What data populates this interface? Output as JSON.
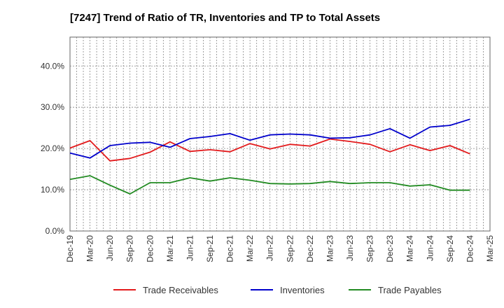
{
  "chart_data": {
    "type": "line",
    "title": "[7247]  Trend of Ratio of TR, Inventories and TP to Total Assets",
    "xlabel": "",
    "ylabel": "",
    "ylim": [
      0,
      47
    ],
    "y_ticks": [
      "0.0%",
      "10.0%",
      "20.0%",
      "30.0%",
      "40.0%"
    ],
    "y_tick_values": [
      0,
      10,
      20,
      30,
      40
    ],
    "x_tick_labels": [
      "Dec-19",
      "Mar-20",
      "Jun-20",
      "Sep-20",
      "Dec-20",
      "Mar-21",
      "Jun-21",
      "Sep-21",
      "Dec-21",
      "Mar-22",
      "Jun-22",
      "Sep-22",
      "Dec-22",
      "Mar-23",
      "Jun-23",
      "Sep-23",
      "Dec-23",
      "Mar-24",
      "Jun-24",
      "Sep-24",
      "Dec-24",
      "Mar-25"
    ],
    "x": [
      "Dec-19",
      "Mar-20",
      "Jun-20",
      "Sep-20",
      "Dec-20",
      "Mar-21",
      "Jun-21",
      "Sep-21",
      "Dec-21",
      "Mar-22",
      "Jun-22",
      "Sep-22",
      "Dec-22",
      "Mar-23",
      "Jun-23",
      "Sep-23",
      "Dec-23",
      "Mar-24",
      "Jun-24",
      "Sep-24",
      "Dec-24"
    ],
    "grid": true,
    "legend_position": "bottom",
    "series": [
      {
        "name": "Trade Receivables",
        "color": "#e31a1c",
        "values": [
          20.1,
          21.9,
          17.0,
          17.6,
          19.1,
          21.6,
          19.3,
          19.7,
          19.2,
          21.2,
          19.9,
          21.0,
          20.6,
          22.3,
          21.7,
          21.0,
          19.2,
          20.9,
          19.5,
          20.7,
          18.7
        ]
      },
      {
        "name": "Inventories",
        "color": "#0000cc",
        "values": [
          18.9,
          17.7,
          20.7,
          21.3,
          21.5,
          20.3,
          22.4,
          22.9,
          23.6,
          22.0,
          23.3,
          23.5,
          23.3,
          22.5,
          22.6,
          23.3,
          24.8,
          22.5,
          25.2,
          25.6,
          27.1
        ]
      },
      {
        "name": "Trade Payables",
        "color": "#228b22",
        "values": [
          12.5,
          13.4,
          11.1,
          9.0,
          11.7,
          11.7,
          12.9,
          12.1,
          12.9,
          12.3,
          11.5,
          11.4,
          11.5,
          12.0,
          11.5,
          11.7,
          11.7,
          10.9,
          11.2,
          9.9,
          9.9
        ]
      }
    ]
  }
}
